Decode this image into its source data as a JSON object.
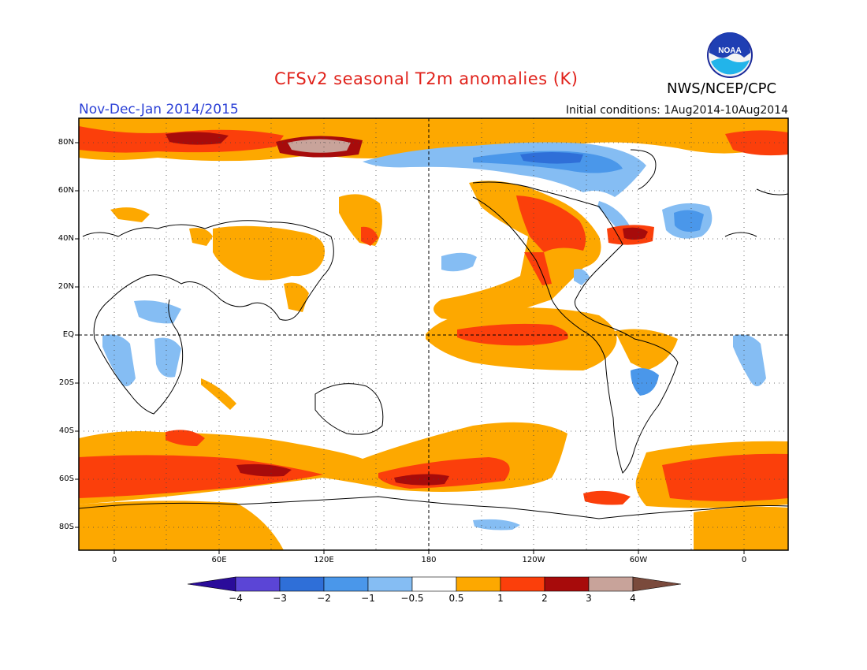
{
  "header": {
    "title": "CFSv2 seasonal T2m anomalies (K)",
    "season": "Nov-Dec-Jan 2014/2015",
    "initial_conditions": "Initial conditions: 1Aug2014-10Aug2014",
    "agency": "NWS/NCEP/CPC",
    "logo_text": "NOAA"
  },
  "map": {
    "lat_labels": [
      "80N",
      "60N",
      "40N",
      "20N",
      "EQ",
      "20S",
      "40S",
      "60S",
      "80S"
    ],
    "lon_labels": [
      "0",
      "60E",
      "120E",
      "180",
      "120W",
      "60W",
      "0"
    ],
    "colors": {
      "below_4": "#2a0c9a",
      "m4_m3": "#5b45d6",
      "m3_m2": "#2f6fd8",
      "m2_m1": "#4a97ea",
      "m1_m05": "#85bdf3",
      "neutral": "#ffffff",
      "p05_1": "#fda800",
      "p1_2": "#fb3f0b",
      "p2_3": "#a70b0b",
      "p3_4": "#c8a39a",
      "above_4": "#7a4a3c"
    }
  },
  "colorbar": {
    "labels": [
      "−4",
      "−3",
      "−2",
      "−1",
      "−0.5",
      "0.5",
      "1",
      "2",
      "3",
      "4"
    ]
  }
}
